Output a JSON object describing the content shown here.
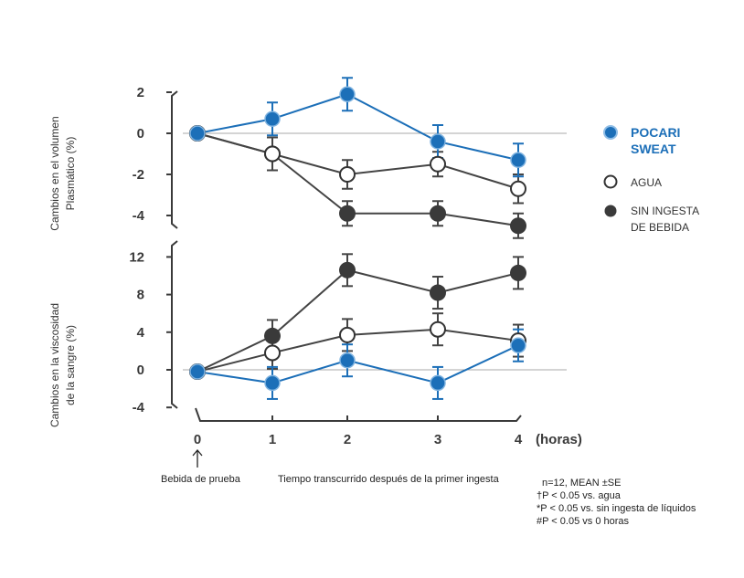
{
  "chart_data": [
    {
      "type": "line",
      "ylabel": [
        "Cambios en el volumen",
        "Plasmático (%)"
      ],
      "x": [
        0,
        1,
        2,
        3,
        4
      ],
      "yticks": [
        2,
        0,
        -2,
        -4
      ],
      "ylim": [
        -4.6,
        2.2
      ],
      "series": [
        {
          "name": "POCARI SWEAT",
          "values": [
            0,
            0.7,
            1.9,
            -0.4,
            -1.3
          ],
          "err": [
            0,
            0.8,
            0.8,
            0.8,
            0.8
          ],
          "color": "#1c6fb8",
          "marker": "filled-blue"
        },
        {
          "name": "AGUA",
          "values": [
            0,
            -1.0,
            -2.0,
            -1.5,
            -2.7
          ],
          "err": [
            0,
            0.8,
            0.7,
            0.6,
            0.7
          ],
          "color": "#444444",
          "marker": "open"
        },
        {
          "name": "SIN INGESTA DE BEBIDA",
          "values": [
            0,
            -1.0,
            -3.9,
            -3.9,
            -4.5
          ],
          "err": [
            0,
            0.8,
            0.6,
            0.6,
            0.6
          ],
          "color": "#444444",
          "marker": "filled-dark"
        }
      ]
    },
    {
      "type": "line",
      "ylabel": [
        "Cambios en la  viscosidad",
        "de la sangre (%)"
      ],
      "x": [
        0,
        1,
        2,
        3,
        4
      ],
      "yticks": [
        12,
        8,
        4,
        0,
        -4
      ],
      "ylim": [
        -4,
        12.8
      ],
      "series": [
        {
          "name": "POCARI SWEAT",
          "values": [
            -0.2,
            -1.4,
            1.0,
            -1.4,
            2.6
          ],
          "err": [
            0,
            1.7,
            1.7,
            1.7,
            1.7
          ],
          "color": "#1c6fb8",
          "marker": "filled-blue"
        },
        {
          "name": "AGUA",
          "values": [
            -0.2,
            1.8,
            3.7,
            4.3,
            3.1
          ],
          "err": [
            0,
            1.7,
            1.7,
            1.7,
            1.7
          ],
          "color": "#444444",
          "marker": "open"
        },
        {
          "name": "SIN INGESTA DE BEBIDA",
          "values": [
            -0.2,
            3.6,
            10.6,
            8.2,
            10.3
          ],
          "err": [
            0,
            1.7,
            1.7,
            1.7,
            1.7
          ],
          "color": "#444444",
          "marker": "filled-dark"
        }
      ]
    }
  ],
  "xaxis": {
    "ticks": [
      "0",
      "1",
      "2",
      "3",
      "4"
    ],
    "unit": "(horas)"
  },
  "legend": [
    {
      "lines": [
        "POCARI",
        "SWEAT"
      ],
      "marker": "filled-blue",
      "style": "bold-blue"
    },
    {
      "lines": [
        "AGUA"
      ],
      "marker": "open",
      "style": "normal"
    },
    {
      "lines": [
        "SIN INGESTA",
        "DE BEBIDA"
      ],
      "marker": "filled-dark",
      "style": "normal"
    }
  ],
  "annotations": {
    "arrow_label": "Bebida de prueba",
    "elapsed_label": "Tiempo transcurrido después de la primer ingesta",
    "notes": [
      "n=12, MEAN ±SE",
      "†P < 0.05 vs. agua",
      "*P < 0.05 vs. sin ingesta de líquidos",
      "#P < 0.05 vs 0 horas"
    ]
  },
  "colors": {
    "blue": "#1c6fb8",
    "dark": "#444444",
    "zero_line": "#aaaaaa"
  }
}
